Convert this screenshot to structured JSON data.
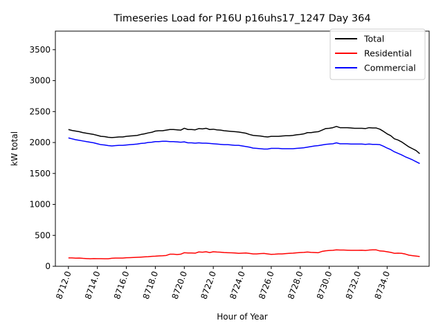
{
  "chart_data": {
    "type": "line",
    "title": "Timeseries Load for P16U p16uhs17_1247  Day 364",
    "xlabel": "Hour of Year",
    "ylabel": "kW total",
    "xlim": [
      8711.1,
      8736.9
    ],
    "ylim": [
      0,
      3800
    ],
    "xticks": [
      8712.0,
      8714.0,
      8716.0,
      8718.0,
      8720.0,
      8722.0,
      8724.0,
      8726.0,
      8728.0,
      8730.0,
      8732.0,
      8734.0
    ],
    "xtick_labels": [
      "8712.0",
      "8714.0",
      "8716.0",
      "8718.0",
      "8720.0",
      "8722.0",
      "8724.0",
      "8726.0",
      "8728.0",
      "8730.0",
      "8732.0",
      "8734.0"
    ],
    "yticks": [
      0,
      500,
      1000,
      1500,
      2000,
      2500,
      3000,
      3500
    ],
    "ytick_labels": [
      "0",
      "500",
      "1000",
      "1500",
      "2000",
      "2500",
      "3000",
      "3500"
    ],
    "legend_position": "top-right",
    "x_start": 8712.0,
    "x_step": 0.25,
    "series": [
      {
        "name": "Total",
        "color": "#000000",
        "values": [
          2210,
          2195,
          2185,
          2175,
          2160,
          2150,
          2140,
          2130,
          2115,
          2100,
          2095,
          2085,
          2080,
          2085,
          2090,
          2090,
          2100,
          2105,
          2110,
          2115,
          2130,
          2140,
          2155,
          2165,
          2185,
          2190,
          2190,
          2200,
          2210,
          2210,
          2205,
          2200,
          2230,
          2210,
          2210,
          2205,
          2225,
          2220,
          2230,
          2210,
          2215,
          2205,
          2200,
          2190,
          2185,
          2180,
          2175,
          2170,
          2160,
          2150,
          2130,
          2115,
          2110,
          2105,
          2095,
          2090,
          2100,
          2100,
          2100,
          2105,
          2110,
          2110,
          2115,
          2125,
          2130,
          2140,
          2160,
          2160,
          2170,
          2175,
          2200,
          2225,
          2230,
          2240,
          2260,
          2240,
          2240,
          2240,
          2235,
          2230,
          2230,
          2230,
          2225,
          2240,
          2235,
          2235,
          2215,
          2180,
          2140,
          2110,
          2060,
          2040,
          2010,
          1970,
          1930,
          1900,
          1870,
          1820
        ],
        "labels": []
      },
      {
        "name": "Residential",
        "color": "#ff0000",
        "values": [
          135,
          135,
          132,
          133,
          128,
          125,
          122,
          125,
          123,
          123,
          121,
          122,
          130,
          133,
          133,
          133,
          138,
          140,
          142,
          145,
          148,
          152,
          155,
          160,
          163,
          168,
          170,
          175,
          195,
          195,
          190,
          195,
          220,
          215,
          215,
          212,
          232,
          228,
          235,
          222,
          235,
          230,
          228,
          222,
          220,
          218,
          215,
          210,
          212,
          215,
          208,
          200,
          200,
          205,
          208,
          200,
          193,
          195,
          200,
          200,
          205,
          210,
          212,
          218,
          222,
          225,
          230,
          225,
          222,
          220,
          240,
          250,
          255,
          258,
          265,
          262,
          262,
          260,
          258,
          258,
          258,
          260,
          255,
          262,
          265,
          265,
          248,
          245,
          235,
          225,
          210,
          212,
          210,
          198,
          180,
          172,
          165,
          158
        ],
        "labels": []
      },
      {
        "name": "Commercial",
        "color": "#0000ff",
        "values": [
          2075,
          2060,
          2045,
          2035,
          2025,
          2015,
          2005,
          1995,
          1980,
          1965,
          1960,
          1950,
          1945,
          1950,
          1955,
          1955,
          1960,
          1965,
          1970,
          1975,
          1985,
          1990,
          2000,
          2005,
          2015,
          2015,
          2020,
          2020,
          2015,
          2015,
          2010,
          2005,
          2010,
          1995,
          1995,
          1990,
          1995,
          1990,
          1990,
          1985,
          1980,
          1975,
          1970,
          1965,
          1965,
          1960,
          1955,
          1955,
          1945,
          1935,
          1925,
          1910,
          1905,
          1900,
          1895,
          1895,
          1905,
          1905,
          1905,
          1900,
          1900,
          1900,
          1900,
          1905,
          1910,
          1915,
          1925,
          1935,
          1945,
          1950,
          1960,
          1970,
          1975,
          1980,
          1995,
          1980,
          1980,
          1980,
          1975,
          1975,
          1975,
          1975,
          1970,
          1975,
          1970,
          1970,
          1965,
          1940,
          1910,
          1885,
          1850,
          1825,
          1800,
          1770,
          1745,
          1720,
          1690,
          1660
        ],
        "labels": []
      }
    ]
  }
}
